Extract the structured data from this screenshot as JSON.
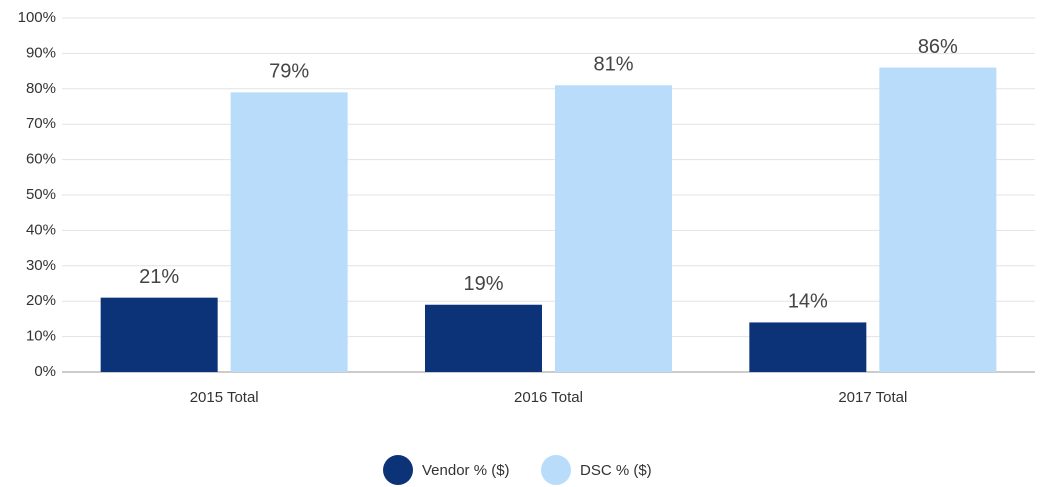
{
  "chart_data": {
    "type": "bar",
    "categories": [
      "2015 Total",
      "2016 Total",
      "2017 Total"
    ],
    "series": [
      {
        "name": "Vendor % ($)",
        "color": "#0c3278",
        "values": [
          21,
          19,
          14
        ],
        "value_labels": [
          "21%",
          "19%",
          "14%"
        ]
      },
      {
        "name": "DSC % ($)",
        "color": "#b9dcfb",
        "values": [
          79,
          81,
          86
        ],
        "value_labels": [
          "79%",
          "81%",
          "86%"
        ]
      }
    ],
    "ylim": [
      0,
      100
    ],
    "yticks": [
      {
        "value": 0,
        "label": "0%"
      },
      {
        "value": 10,
        "label": "10%"
      },
      {
        "value": 20,
        "label": "20%"
      },
      {
        "value": 30,
        "label": "30%"
      },
      {
        "value": 40,
        "label": "40%"
      },
      {
        "value": 50,
        "label": "50%"
      },
      {
        "value": 60,
        "label": "60%"
      },
      {
        "value": 70,
        "label": "70%"
      },
      {
        "value": 80,
        "label": "80%"
      },
      {
        "value": 90,
        "label": "90%"
      },
      {
        "value": 100,
        "label": "100%"
      }
    ],
    "grid": true,
    "legend": "bottom"
  }
}
